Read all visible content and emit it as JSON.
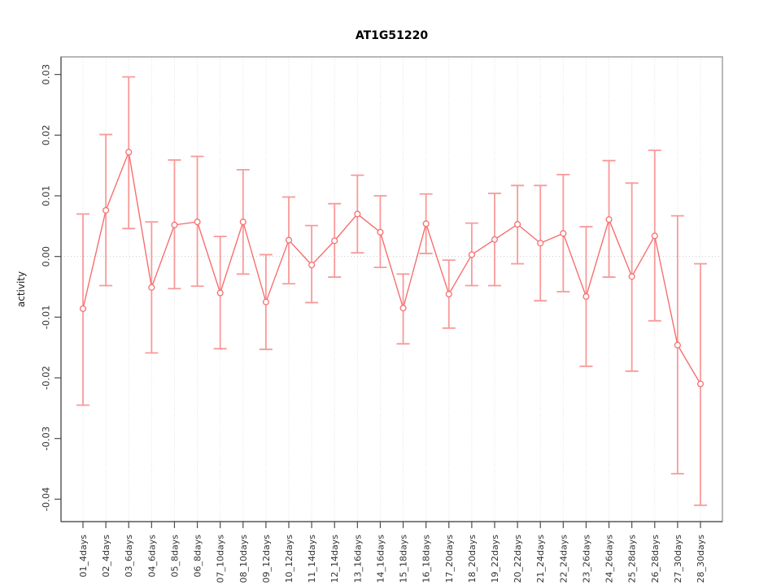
{
  "chart_data": {
    "type": "line",
    "title": "AT1G51220",
    "xlabel": "",
    "ylabel": "activity",
    "legend": "none",
    "marker": "open-circle",
    "grid": {
      "vertical_gridlines": "dotted-per-category",
      "zero_line": "dotted-horizontal"
    },
    "ylim": [
      -0.0437,
      0.0329
    ],
    "yticks": [
      "0.03",
      "0.02",
      "0.01",
      "0.00",
      "-0.01",
      "-0.02",
      "-0.03",
      "-0.04"
    ],
    "categories": [
      "01_4days",
      "02_4days",
      "03_6days",
      "04_6days",
      "05_8days",
      "06_8days",
      "07_10days",
      "08_10days",
      "09_12days",
      "10_12days",
      "11_14days",
      "12_14days",
      "13_16days",
      "14_16days",
      "15_18days",
      "16_18days",
      "17_20days",
      "18_20days",
      "19_22days",
      "20_22days",
      "21_24days",
      "22_24days",
      "23_26days",
      "24_26days",
      "25_28days",
      "26_28days",
      "27_30days",
      "28_30days"
    ],
    "series": [
      {
        "name": "activity",
        "values": [
          -0.0086,
          0.0076,
          0.0172,
          -0.0051,
          0.0052,
          0.0057,
          -0.006,
          0.0057,
          -0.0075,
          0.0027,
          -0.0014,
          0.0026,
          0.007,
          0.004,
          -0.0085,
          0.0054,
          -0.0062,
          0.0003,
          0.0028,
          0.0053,
          0.0022,
          0.0038,
          -0.0066,
          0.0061,
          -0.0033,
          0.0034,
          -0.0146,
          -0.021
        ],
        "upper": [
          0.007,
          0.0201,
          0.0296,
          0.0057,
          0.0159,
          0.0165,
          0.0033,
          0.0143,
          0.0003,
          0.0098,
          0.0051,
          0.0087,
          0.0134,
          0.01,
          -0.0029,
          0.0103,
          -0.0006,
          0.0055,
          0.0104,
          0.0117,
          0.0117,
          0.0135,
          0.0049,
          0.0158,
          0.0121,
          0.0175,
          0.0067,
          -0.0012
        ],
        "lower": [
          -0.0245,
          -0.0048,
          0.0046,
          -0.0159,
          -0.0053,
          -0.0049,
          -0.0152,
          -0.0029,
          -0.0153,
          -0.0045,
          -0.0076,
          -0.0034,
          0.0006,
          -0.0018,
          -0.0144,
          0.0005,
          -0.0118,
          -0.0048,
          -0.0048,
          -0.0012,
          -0.0073,
          -0.0058,
          -0.0181,
          -0.0034,
          -0.0189,
          -0.0106,
          -0.0358,
          -0.041
        ]
      }
    ],
    "colors": {
      "line": "#f76f6f",
      "error_bar": "#f89a9a",
      "marker_fill": "#ffffff",
      "gridline": "#e3e3e3",
      "zero_line": "#c9c9c9",
      "box": "#9a9a9a",
      "axis": "#4d4d4d",
      "tick_text": "#333333"
    }
  }
}
